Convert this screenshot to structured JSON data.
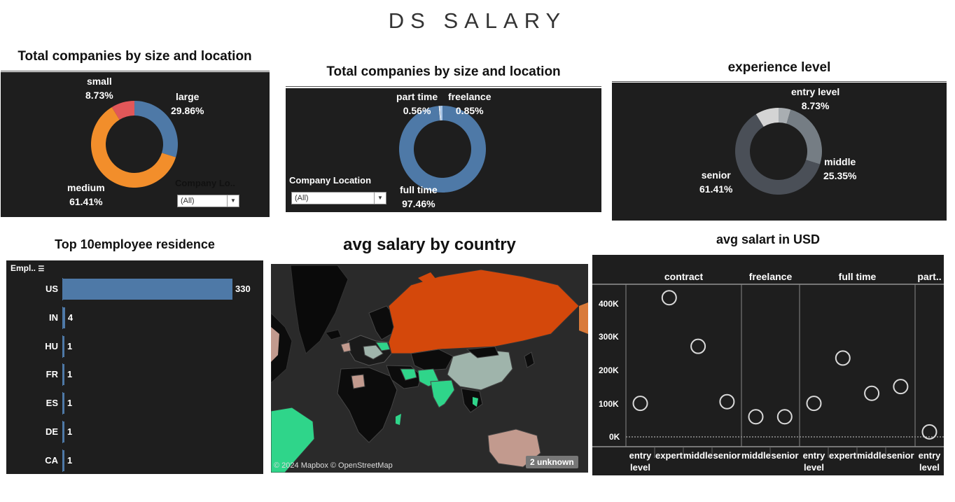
{
  "title": "DS SALARY",
  "panels": {
    "company_size": {
      "title": "Total companies by size and location",
      "segments": [
        {
          "name": "small",
          "pct": "8.73%",
          "value": 8.73,
          "color": "#e15759"
        },
        {
          "name": "large",
          "pct": "29.86%",
          "value": 29.86,
          "color": "#4e79a7"
        },
        {
          "name": "medium",
          "pct": "61.41%",
          "value": 61.41,
          "color": "#f28e2b"
        }
      ],
      "filter_label": "Company Lo..",
      "filter_value": "(All)"
    },
    "employment_type": {
      "title": "Total companies by size and location",
      "segments": [
        {
          "name": "part time",
          "pct": "0.56%",
          "value": 0.56,
          "color": "#e8eef6"
        },
        {
          "name": "freelance",
          "pct": "0.85%",
          "value": 0.85,
          "color": "#a8c6e8"
        },
        {
          "name": "full time",
          "pct": "97.46%",
          "value": 97.46,
          "color": "#4e79a7"
        }
      ],
      "filter_label": "Company Location",
      "filter_value": "(All)"
    },
    "experience": {
      "title": "experience level",
      "segments": [
        {
          "name": "entry level",
          "pct": "8.73%",
          "value": 8.73,
          "color": "#d4d4d4"
        },
        {
          "name": "",
          "pct": "",
          "value": 4.51,
          "color": "#a9aeb2"
        },
        {
          "name": "middle",
          "pct": "25.35%",
          "value": 25.35,
          "color": "#757d84"
        },
        {
          "name": "senior",
          "pct": "61.41%",
          "value": 61.41,
          "color": "#4a4f57"
        }
      ]
    },
    "residence": {
      "title": "Top 10employee residence",
      "header": "Empl..",
      "rows": [
        {
          "code": "US",
          "value": 330,
          "label": "330"
        },
        {
          "code": "IN",
          "value": 4,
          "label": "4"
        },
        {
          "code": "HU",
          "value": 1,
          "label": "1"
        },
        {
          "code": "FR",
          "value": 1,
          "label": "1"
        },
        {
          "code": "ES",
          "value": 1,
          "label": "1"
        },
        {
          "code": "DE",
          "value": 1,
          "label": "1"
        },
        {
          "code": "CA",
          "value": 1,
          "label": "1"
        }
      ],
      "bar_color": "#4e79a7"
    },
    "map": {
      "title": "avg salary by country",
      "attribution": "© 2024 Mapbox © OpenStreetMap",
      "unknown_badge": "2 unknown"
    },
    "salary_usd": {
      "title": "avg salart in USD",
      "groups": [
        "contract",
        "freelance",
        "full time",
        "part.."
      ],
      "y_ticks": [
        "400K",
        "300K",
        "200K",
        "100K",
        "0K"
      ]
    }
  },
  "chart_data": [
    {
      "type": "pie",
      "title": "Total companies by size and location",
      "categories": [
        "small",
        "large",
        "medium"
      ],
      "values": [
        8.73,
        29.86,
        61.41
      ]
    },
    {
      "type": "pie",
      "title": "Total companies by size and location",
      "categories": [
        "part time",
        "freelance",
        "full time"
      ],
      "values": [
        0.56,
        0.85,
        97.46
      ]
    },
    {
      "type": "pie",
      "title": "experience level",
      "categories": [
        "entry level",
        "",
        "middle",
        "senior"
      ],
      "values": [
        8.73,
        4.51,
        25.35,
        61.41
      ]
    },
    {
      "type": "bar",
      "title": "Top 10employee residence",
      "categories": [
        "US",
        "IN",
        "HU",
        "FR",
        "ES",
        "DE",
        "CA"
      ],
      "values": [
        330,
        4,
        1,
        1,
        1,
        1,
        1
      ]
    },
    {
      "type": "scatter",
      "title": "avg salart in USD",
      "ylim": [
        0,
        450000
      ],
      "series": [
        {
          "name": "contract",
          "x": [
            "entry level",
            "expert",
            "middle",
            "senior"
          ],
          "y": [
            100000,
            415000,
            270000,
            105000
          ]
        },
        {
          "name": "freelance",
          "x": [
            "middle",
            "senior"
          ],
          "y": [
            60000,
            60000
          ]
        },
        {
          "name": "full time",
          "x": [
            "entry level",
            "expert",
            "middle",
            "senior"
          ],
          "y": [
            100000,
            235000,
            130000,
            150000
          ]
        },
        {
          "name": "part..",
          "x": [
            "entry level"
          ],
          "y": [
            15000
          ]
        }
      ]
    }
  ]
}
